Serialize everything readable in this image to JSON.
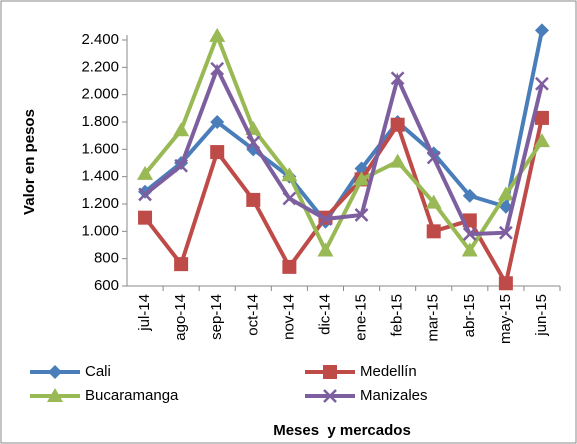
{
  "chart_data": {
    "type": "line",
    "x_label": "Meses  y mercados",
    "y_label": "Valor en pesos",
    "categories": [
      "jul-14",
      "ago-14",
      "sep-14",
      "oct-14",
      "nov-14",
      "dic-14",
      "ene-15",
      "feb-15",
      "mar-15",
      "abr-15",
      "may-15",
      "jun-15"
    ],
    "series": [
      {
        "name": "Cali",
        "color": "#4a7ebb",
        "marker": "diamond",
        "values": [
          1290,
          1500,
          1800,
          1600,
          1400,
          1070,
          1460,
          1800,
          1570,
          1260,
          1180,
          2470
        ]
      },
      {
        "name": "Medellín",
        "color": "#be4b48",
        "marker": "square",
        "values": [
          1100,
          760,
          1580,
          1230,
          740,
          1100,
          1380,
          1780,
          1000,
          1080,
          620,
          1830
        ]
      },
      {
        "name": "Bucaramanga",
        "color": "#98b954",
        "marker": "triangle",
        "values": [
          1420,
          1740,
          2430,
          1750,
          1410,
          860,
          1380,
          1510,
          1210,
          860,
          1270,
          1660
        ]
      },
      {
        "name": "Manizales",
        "color": "#7d5fa0",
        "marker": "x",
        "values": [
          1270,
          1480,
          2190,
          1650,
          1240,
          1090,
          1120,
          2120,
          1540,
          980,
          990,
          2080
        ]
      }
    ],
    "ylim": [
      600,
      2400
    ],
    "yticks": [
      600,
      800,
      {
        "value": 1000,
        "label": "1.000"
      },
      {
        "value": 1200,
        "label": "1.200"
      },
      {
        "value": 1400,
        "label": "1.400"
      },
      {
        "value": 1600,
        "label": "1.600"
      },
      {
        "value": 1800,
        "label": "1.800"
      },
      {
        "value": 2000,
        "label": "2.000"
      },
      {
        "value": 2200,
        "label": "2.200"
      },
      {
        "value": 2400,
        "label": "2.400"
      }
    ],
    "grid": false
  }
}
